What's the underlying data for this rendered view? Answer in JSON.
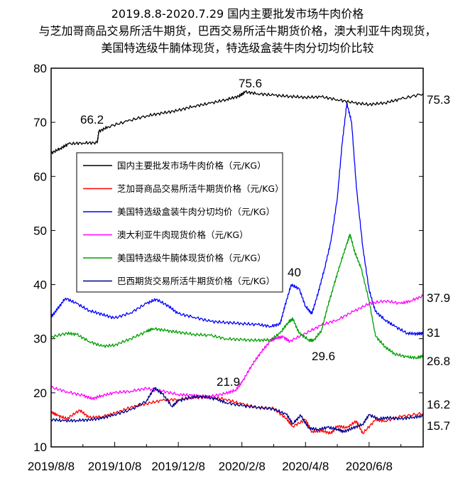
{
  "chart_data": {
    "type": "line",
    "title": [
      "2019.8.8-2020.7.29 国内主要批发市场牛肉价格",
      "与芝加哥商品交易所活牛期货，巴西交易所活牛期货价格，澳大利亚牛肉现货，",
      "美国特选级牛腩体现货，特选级盒装牛肉分切均价比较"
    ],
    "xlabel": "",
    "ylabel": "",
    "ylim": [
      10,
      80
    ],
    "y_ticks": [
      10,
      20,
      30,
      40,
      50,
      60,
      70,
      80
    ],
    "x_tick_labels": [
      "2019/8/8",
      "2019/10/8",
      "2019/12/8",
      "2020/2/8",
      "2020/4/8",
      "2020/6/8"
    ],
    "x_tick_months": [
      0,
      2,
      4,
      6,
      8,
      10
    ],
    "x_range_months": [
      0,
      11.7
    ],
    "grid": false,
    "legend_placement": "upper-left",
    "annotations": [
      "66.2",
      "75.6",
      "75.3",
      "40",
      "37.9",
      "31",
      "29.6",
      "26.8",
      "21.9",
      "16.2",
      "15.7"
    ],
    "series": [
      {
        "name": "国内主要批发市场牛肉价格（元/KG）",
        "color": "#000000",
        "points": [
          [
            0,
            64.3
          ],
          [
            0.3,
            65.2
          ],
          [
            0.55,
            66.0
          ],
          [
            1.0,
            66.2
          ],
          [
            1.45,
            66.2
          ],
          [
            1.5,
            68.3
          ],
          [
            1.8,
            69.2
          ],
          [
            2.4,
            70.2
          ],
          [
            3.0,
            71.2
          ],
          [
            3.5,
            71.7
          ],
          [
            4.0,
            72.2
          ],
          [
            4.5,
            73.0
          ],
          [
            5.0,
            73.5
          ],
          [
            5.5,
            74.2
          ],
          [
            5.9,
            74.8
          ],
          [
            6.1,
            75.6
          ],
          [
            6.5,
            75.3
          ],
          [
            7.0,
            75.0
          ],
          [
            7.5,
            74.8
          ],
          [
            8.0,
            74.6
          ],
          [
            8.5,
            74.7
          ],
          [
            9.0,
            74.2
          ],
          [
            9.5,
            73.6
          ],
          [
            10.0,
            73.3
          ],
          [
            10.5,
            73.6
          ],
          [
            11.0,
            74.3
          ],
          [
            11.7,
            75.3
          ]
        ]
      },
      {
        "name": "芝加哥商品交易所活牛期货价格（元/KG）",
        "color": "#ff0000",
        "points": [
          [
            0,
            16.5
          ],
          [
            0.2,
            15.8
          ],
          [
            0.5,
            15.2
          ],
          [
            0.9,
            16.8
          ],
          [
            1.2,
            15.4
          ],
          [
            1.6,
            15.6
          ],
          [
            2.0,
            16.2
          ],
          [
            2.5,
            17.3
          ],
          [
            3.0,
            18.0
          ],
          [
            3.5,
            18.6
          ],
          [
            4.0,
            18.8
          ],
          [
            4.5,
            19.1
          ],
          [
            5.0,
            19.2
          ],
          [
            5.5,
            18.8
          ],
          [
            6.0,
            17.9
          ],
          [
            6.5,
            17.3
          ],
          [
            7.0,
            17.1
          ],
          [
            7.4,
            15.2
          ],
          [
            7.6,
            13.8
          ],
          [
            8.0,
            15.0
          ],
          [
            8.2,
            12.8
          ],
          [
            8.5,
            13.0
          ],
          [
            8.8,
            12.5
          ],
          [
            9.0,
            13.9
          ],
          [
            9.3,
            13.5
          ],
          [
            9.6,
            14.8
          ],
          [
            9.8,
            12.5
          ],
          [
            10.2,
            15.0
          ],
          [
            10.5,
            14.8
          ],
          [
            11.0,
            15.6
          ],
          [
            11.7,
            16.2
          ]
        ]
      },
      {
        "name": "美国特选级盒装牛肉分切均价（元/KG）",
        "color": "#0000ff",
        "points": [
          [
            0,
            34.0
          ],
          [
            0.2,
            35.5
          ],
          [
            0.45,
            37.5
          ],
          [
            0.8,
            36.5
          ],
          [
            1.2,
            35.2
          ],
          [
            1.6,
            34.5
          ],
          [
            2.0,
            33.8
          ],
          [
            2.5,
            34.8
          ],
          [
            3.0,
            36.5
          ],
          [
            3.3,
            37.3
          ],
          [
            3.7,
            36.0
          ],
          [
            4.0,
            34.6
          ],
          [
            4.5,
            34.0
          ],
          [
            5.0,
            33.2
          ],
          [
            5.5,
            33.0
          ],
          [
            6.0,
            32.8
          ],
          [
            6.5,
            32.6
          ],
          [
            6.9,
            32.3
          ],
          [
            7.2,
            32.7
          ],
          [
            7.35,
            36.0
          ],
          [
            7.55,
            40.0
          ],
          [
            7.8,
            39.2
          ],
          [
            8.0,
            36.0
          ],
          [
            8.2,
            34.6
          ],
          [
            8.4,
            38.5
          ],
          [
            8.6,
            43.0
          ],
          [
            8.8,
            48.0
          ],
          [
            9.0,
            56.0
          ],
          [
            9.15,
            66.0
          ],
          [
            9.3,
            73.5
          ],
          [
            9.45,
            70.0
          ],
          [
            9.6,
            58.0
          ],
          [
            9.8,
            47.0
          ],
          [
            10.0,
            39.0
          ],
          [
            10.2,
            35.0
          ],
          [
            10.5,
            33.5
          ],
          [
            10.8,
            32.3
          ],
          [
            11.2,
            31.0
          ],
          [
            11.5,
            30.9
          ],
          [
            11.7,
            31.0
          ]
        ]
      },
      {
        "name": "澳大利亚牛肉现货价格（元/KG）",
        "color": "#ff00ff",
        "points": [
          [
            0,
            21.0
          ],
          [
            0.5,
            20.2
          ],
          [
            1.0,
            19.5
          ],
          [
            1.3,
            18.9
          ],
          [
            1.6,
            19.5
          ],
          [
            2.0,
            20.0
          ],
          [
            2.5,
            20.3
          ],
          [
            3.0,
            20.8
          ],
          [
            3.5,
            20.3
          ],
          [
            4.0,
            19.7
          ],
          [
            4.4,
            19.5
          ],
          [
            4.7,
            19.4
          ],
          [
            5.0,
            19.3
          ],
          [
            5.5,
            19.9
          ],
          [
            5.8,
            20.5
          ],
          [
            6.0,
            21.9
          ],
          [
            6.3,
            25.0
          ],
          [
            6.6,
            27.5
          ],
          [
            6.9,
            29.6
          ],
          [
            7.1,
            30.2
          ],
          [
            7.3,
            30.3
          ],
          [
            7.5,
            29.5
          ],
          [
            8.0,
            31.0
          ],
          [
            8.5,
            32.5
          ],
          [
            9.0,
            33.5
          ],
          [
            9.5,
            35.0
          ],
          [
            10.0,
            36.5
          ],
          [
            10.5,
            37.0
          ],
          [
            11.0,
            36.5
          ],
          [
            11.3,
            37.0
          ],
          [
            11.7,
            37.9
          ]
        ]
      },
      {
        "name": "美国特选级牛腩体现货价格（元/KG）",
        "color": "#00a000",
        "points": [
          [
            0,
            30.3
          ],
          [
            0.5,
            31.0
          ],
          [
            0.8,
            30.8
          ],
          [
            1.2,
            29.5
          ],
          [
            1.6,
            28.6
          ],
          [
            2.0,
            28.8
          ],
          [
            2.5,
            30.0
          ],
          [
            3.0,
            31.3
          ],
          [
            3.2,
            31.9
          ],
          [
            3.6,
            31.5
          ],
          [
            4.0,
            31.2
          ],
          [
            4.5,
            30.8
          ],
          [
            5.0,
            30.6
          ],
          [
            5.5,
            30.0
          ],
          [
            6.0,
            29.8
          ],
          [
            6.5,
            29.7
          ],
          [
            6.9,
            29.8
          ],
          [
            7.2,
            31.0
          ],
          [
            7.45,
            33.0
          ],
          [
            7.6,
            33.7
          ],
          [
            7.8,
            31.0
          ],
          [
            8.1,
            29.8
          ],
          [
            8.25,
            29.6
          ],
          [
            8.5,
            31.5
          ],
          [
            8.7,
            36.0
          ],
          [
            8.9,
            40.0
          ],
          [
            9.1,
            44.0
          ],
          [
            9.3,
            47.5
          ],
          [
            9.4,
            49.3
          ],
          [
            9.55,
            46.0
          ],
          [
            9.75,
            43.0
          ],
          [
            10.0,
            37.0
          ],
          [
            10.2,
            30.5
          ],
          [
            10.5,
            28.5
          ],
          [
            10.8,
            27.2
          ],
          [
            11.2,
            26.6
          ],
          [
            11.5,
            26.5
          ],
          [
            11.7,
            26.8
          ]
        ]
      },
      {
        "name": "巴西期货交易所活牛期货价格（元/KG）",
        "color": "#00008b",
        "points": [
          [
            0,
            15.1
          ],
          [
            0.4,
            14.8
          ],
          [
            0.8,
            14.9
          ],
          [
            1.2,
            15.0
          ],
          [
            1.6,
            15.3
          ],
          [
            2.0,
            16.0
          ],
          [
            2.5,
            16.8
          ],
          [
            3.0,
            18.5
          ],
          [
            3.25,
            20.9
          ],
          [
            3.5,
            19.8
          ],
          [
            3.8,
            17.5
          ],
          [
            4.0,
            18.5
          ],
          [
            4.4,
            19.2
          ],
          [
            4.8,
            19.3
          ],
          [
            5.2,
            18.8
          ],
          [
            5.5,
            18.2
          ],
          [
            6.0,
            17.6
          ],
          [
            6.5,
            17.3
          ],
          [
            7.0,
            17.0
          ],
          [
            7.4,
            16.0
          ],
          [
            7.6,
            14.3
          ],
          [
            7.85,
            15.8
          ],
          [
            8.1,
            13.5
          ],
          [
            8.4,
            13.2
          ],
          [
            8.7,
            13.6
          ],
          [
            9.0,
            13.3
          ],
          [
            9.2,
            12.8
          ],
          [
            9.5,
            13.5
          ],
          [
            9.8,
            14.2
          ],
          [
            10.0,
            15.9
          ],
          [
            10.3,
            15.2
          ],
          [
            10.6,
            15.4
          ],
          [
            11.0,
            15.2
          ],
          [
            11.4,
            15.5
          ],
          [
            11.7,
            15.7
          ]
        ]
      }
    ]
  }
}
